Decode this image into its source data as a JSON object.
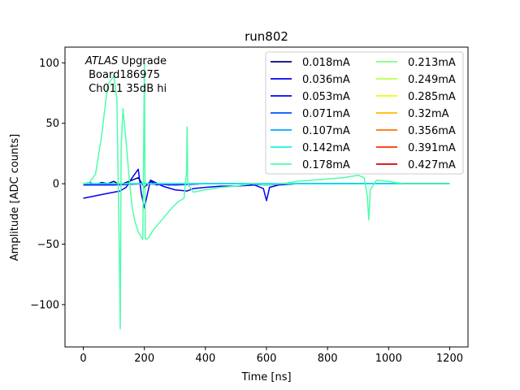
{
  "chart_data": {
    "type": "line",
    "title": "run802",
    "xlabel": "Time [ns]",
    "ylabel": "Amplitude [ADC counts]",
    "xlim": [
      -60,
      1260
    ],
    "ylim": [
      -135,
      113
    ],
    "xticks": [
      0,
      200,
      400,
      600,
      800,
      1000,
      1200
    ],
    "xtick_labels": [
      "0",
      "200",
      "400",
      "600",
      "800",
      "1000",
      "1200"
    ],
    "yticks": [
      -100,
      -50,
      0,
      50,
      100
    ],
    "ytick_labels": [
      "−100",
      "−50",
      "0",
      "50",
      "100"
    ],
    "grid": false,
    "legend_placement": "top-right",
    "legend_columns": 2,
    "annotation": {
      "italic_part": "ATLAS",
      "rest_line1": " Upgrade",
      "line2": " Board186975",
      "line3": " Ch011 35dB hi"
    },
    "series": [
      {
        "name": "0.018mA",
        "color": "#00007f",
        "x": [
          0,
          20,
          40,
          60,
          80,
          100,
          120,
          140,
          160,
          180,
          200,
          220,
          240,
          260,
          280,
          300,
          340,
          400,
          500,
          600,
          700,
          800,
          900,
          1000,
          1100,
          1200
        ],
        "y": [
          0,
          1,
          -1,
          1,
          0,
          2,
          -1,
          1,
          3,
          5,
          -3,
          2,
          -1,
          0,
          -1,
          0,
          0,
          0,
          0,
          0,
          0,
          0,
          0,
          0,
          0,
          0
        ]
      },
      {
        "name": "0.036mA",
        "color": "#0000f1",
        "x": [
          0,
          40,
          80,
          120,
          140,
          160,
          180,
          190,
          200,
          220,
          260,
          300,
          340,
          360,
          400,
          450,
          500,
          560,
          590,
          600,
          610,
          640,
          700,
          800,
          900,
          1000,
          1100,
          1200
        ],
        "y": [
          -12,
          -10,
          -8,
          -6,
          -3,
          5,
          12,
          -8,
          -20,
          3,
          -2,
          -5,
          -6,
          -4,
          -3,
          -2,
          -2,
          -1,
          -4,
          -14,
          -3,
          -1,
          0,
          0,
          0,
          0,
          0,
          0
        ]
      },
      {
        "name": "0.053mA",
        "color": "#0000ff",
        "x": [
          0,
          100,
          200,
          300,
          400,
          500,
          600,
          700,
          800,
          900,
          1000,
          1100,
          1200
        ],
        "y": [
          -1,
          -1,
          0,
          -1,
          0,
          0,
          -1,
          0,
          0,
          0,
          0,
          0,
          0
        ]
      },
      {
        "name": "0.071mA",
        "color": "#0050ff",
        "x": [
          0,
          200,
          400,
          600,
          800,
          1000,
          1200
        ],
        "y": [
          0,
          0,
          0,
          0,
          0,
          0,
          0
        ]
      },
      {
        "name": "0.107mA",
        "color": "#00a8ff",
        "x": [
          0,
          200,
          400,
          600,
          800,
          1000,
          1200
        ],
        "y": [
          0,
          0,
          0,
          0,
          0,
          0,
          0
        ]
      },
      {
        "name": "0.142mA",
        "color": "#10f8e6",
        "x": [
          0,
          200,
          400,
          600,
          800,
          1000,
          1200
        ],
        "y": [
          0,
          0,
          0,
          0,
          0,
          0,
          0
        ]
      },
      {
        "name": "0.178mA",
        "color": "#4cffaa",
        "x": [
          0,
          20,
          40,
          60,
          80,
          100,
          110,
          118,
          121,
          124,
          130,
          140,
          150,
          160,
          170,
          180,
          190,
          195,
          200,
          203,
          207,
          215,
          230,
          250,
          270,
          290,
          310,
          330,
          338,
          340,
          342,
          360,
          400,
          450,
          500,
          550,
          600,
          650,
          700,
          750,
          800,
          850,
          900,
          920,
          930,
          935,
          940,
          960,
          1000,
          1050,
          1100,
          1150,
          1200
        ],
        "y": [
          0,
          1,
          8,
          40,
          82,
          89,
          70,
          -60,
          -120,
          30,
          62,
          35,
          5,
          -20,
          -32,
          -40,
          -44,
          -46,
          100,
          -45,
          -46,
          -44,
          -38,
          -32,
          -26,
          -20,
          -15,
          -12,
          10,
          47,
          0,
          -7,
          -5,
          -3,
          -2,
          0,
          -1,
          0,
          2,
          3,
          4,
          5,
          7,
          5,
          -10,
          -30,
          -5,
          3,
          2,
          0,
          0,
          0,
          0
        ]
      },
      {
        "name": "0.213mA",
        "color": "#7fff7f",
        "x": [],
        "y": []
      },
      {
        "name": "0.249mA",
        "color": "#b9ff46",
        "x": [],
        "y": []
      },
      {
        "name": "0.285mA",
        "color": "#f1fc06",
        "x": [],
        "y": []
      },
      {
        "name": "0.32mA",
        "color": "#ffb900",
        "x": [],
        "y": []
      },
      {
        "name": "0.356mA",
        "color": "#ff7200",
        "x": [],
        "y": []
      },
      {
        "name": "0.391mA",
        "color": "#ff2d00",
        "x": [],
        "y": []
      },
      {
        "name": "0.427mA",
        "color": "#d40000",
        "x": [],
        "y": []
      }
    ]
  }
}
